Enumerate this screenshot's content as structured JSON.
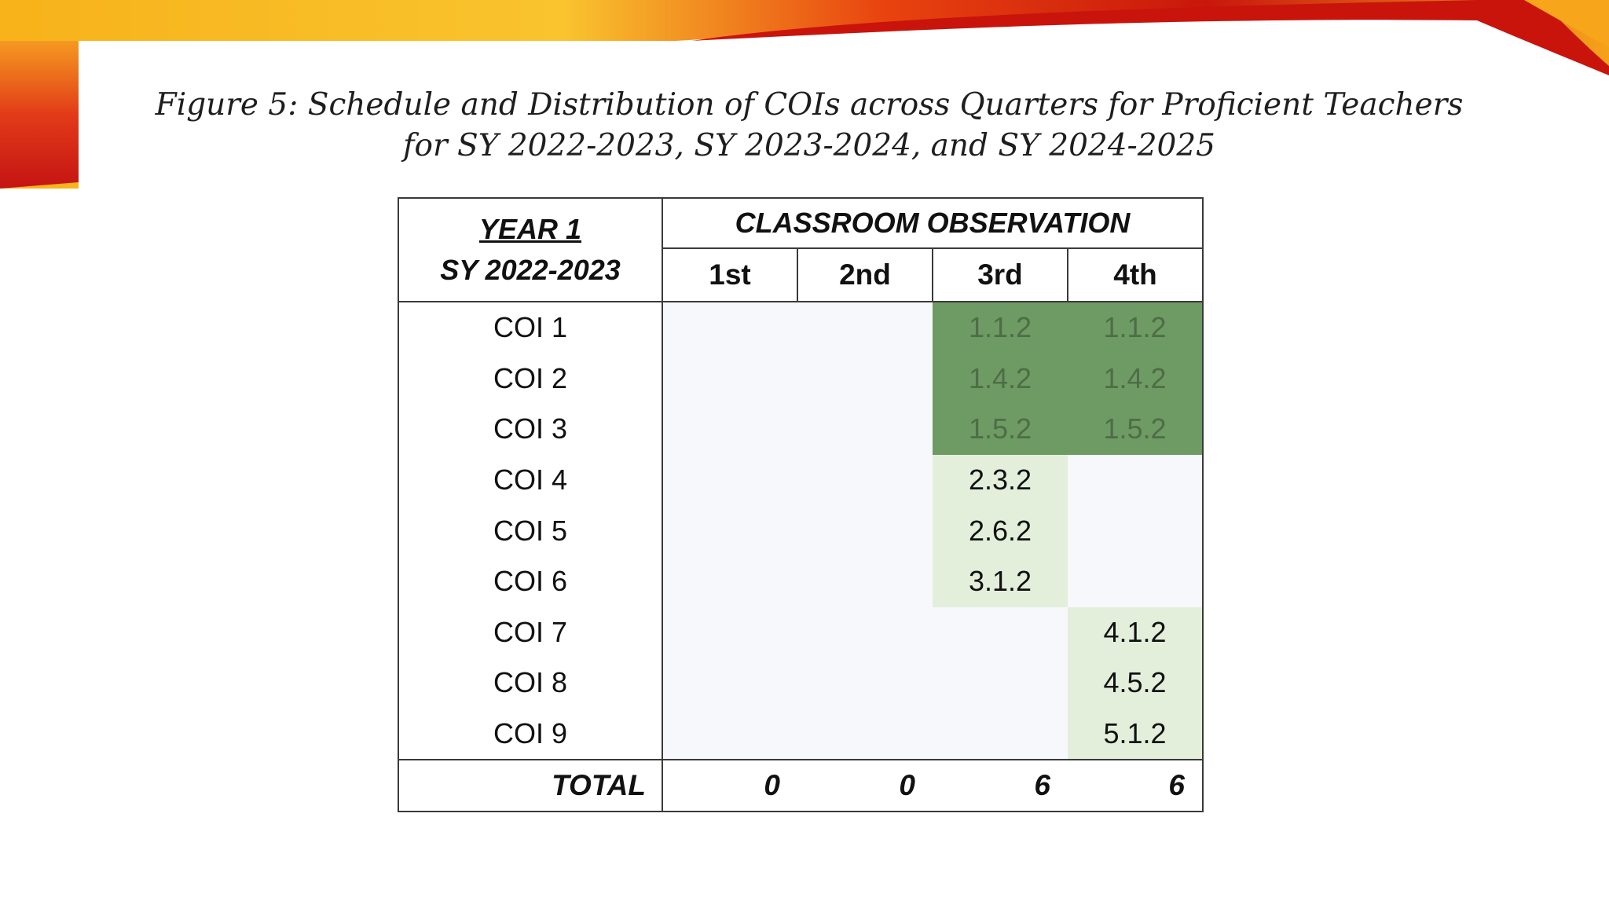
{
  "colors": {
    "dark_green": "#6e9a63",
    "light_green": "#e3efdb",
    "empty_cell": "#f6f8fc",
    "deco_red": "#d21a10",
    "deco_orange": "#f7a51b"
  },
  "caption": {
    "line1": "Figure 5: Schedule and Distribution of COIs across Quarters for Proficient Teachers",
    "line2": "for SY 2022-2023, SY 2023-2024, and SY 2024-2025"
  },
  "table": {
    "year_label": "YEAR 1",
    "sy_label": "SY 2022-2023",
    "group_header": "CLASSROOM OBSERVATION",
    "quarters": [
      "1st",
      "2nd",
      "3rd",
      "4th"
    ],
    "rows": [
      {
        "label": "COI 1",
        "cells": [
          "",
          "",
          "1.1.2",
          "1.1.2"
        ]
      },
      {
        "label": "COI 2",
        "cells": [
          "",
          "",
          "1.4.2",
          "1.4.2"
        ]
      },
      {
        "label": "COI 3",
        "cells": [
          "",
          "",
          "1.5.2",
          "1.5.2"
        ]
      },
      {
        "label": "COI 4",
        "cells": [
          "",
          "",
          "2.3.2",
          ""
        ]
      },
      {
        "label": "COI 5",
        "cells": [
          "",
          "",
          "2.6.2",
          ""
        ]
      },
      {
        "label": "COI 6",
        "cells": [
          "",
          "",
          "3.1.2",
          ""
        ]
      },
      {
        "label": "COI 7",
        "cells": [
          "",
          "",
          "",
          "4.1.2"
        ]
      },
      {
        "label": "COI 8",
        "cells": [
          "",
          "",
          "",
          "4.5.2"
        ]
      },
      {
        "label": "COI 9",
        "cells": [
          "",
          "",
          "",
          "5.1.2"
        ]
      }
    ],
    "total_label": "TOTAL",
    "totals": [
      "0",
      "0",
      "6",
      "6"
    ]
  }
}
